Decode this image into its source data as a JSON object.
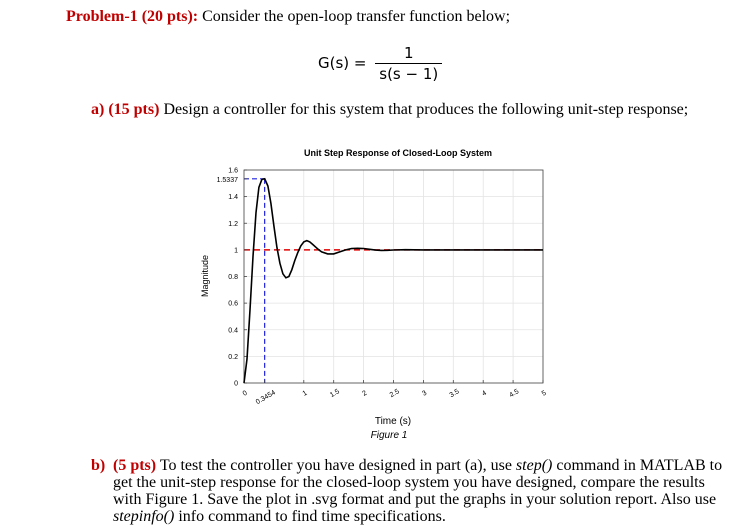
{
  "problem": {
    "label": "Problem-1 (20 pts):",
    "text": " Consider the open-loop transfer function below;",
    "tf_lhs": "G(s) =",
    "tf_num": "1",
    "tf_den": "s(s − 1)"
  },
  "part_a": {
    "label": "a)  (15 pts)",
    "text": " Design a controller for this system that produces the following unit-step response;"
  },
  "part_b": {
    "label": "b)",
    "pts": "(5 pts)",
    "t1": " To test the controller you have designed in part (a), use ",
    "cmd1": "step()",
    "t2": " command in MATLAB to get the unit-step response for the closed-loop system you have designed, compare the results with Figure 1. Save the plot in .svg format and put the graphs in your solution report. Also use ",
    "cmd2": "stepinfo()",
    "t3": " info command to find time specifications."
  },
  "figure_caption": "Figure 1",
  "chart_data": {
    "type": "line",
    "title": "Unit Step Response of Closed-Loop System",
    "xlabel": "Time (s)",
    "ylabel": "Magnitude",
    "xlim": [
      0,
      5
    ],
    "ylim": [
      0,
      1.6
    ],
    "x_ticks": [
      0,
      0.3454,
      1,
      1.5,
      2,
      2.5,
      3,
      3.5,
      4,
      4.5,
      5
    ],
    "x_tick_labels": [
      "0",
      "0.3454",
      "1",
      "1.5",
      "2",
      "2.5",
      "3",
      "3.5",
      "4",
      "4.5",
      "5"
    ],
    "y_ticks": [
      0,
      0.2,
      0.4,
      0.6,
      0.8,
      1,
      1.2,
      1.4,
      1.5337,
      1.6
    ],
    "y_tick_labels": [
      "0",
      "0.2",
      "0.4",
      "0.6",
      "0.8",
      "1",
      "1.2",
      "1.4",
      "1.5337",
      "1.6"
    ],
    "grid": true,
    "peak": {
      "time": 0.3454,
      "value": 1.5337
    },
    "reference_level": 1,
    "series": [
      {
        "color": "#000000",
        "x": [
          0,
          0.05,
          0.1,
          0.15,
          0.2,
          0.25,
          0.3,
          0.3454,
          0.4,
          0.45,
          0.5,
          0.55,
          0.6,
          0.65,
          0.7,
          0.75,
          0.8,
          0.85,
          0.9,
          0.95,
          1.0,
          1.05,
          1.1,
          1.15,
          1.2,
          1.25,
          1.3,
          1.4,
          1.5,
          1.6,
          1.7,
          1.8,
          1.9,
          2.0,
          2.1,
          2.2,
          2.3,
          2.4,
          2.5,
          2.7,
          3.0,
          3.5,
          4.0,
          4.5,
          5.0
        ],
        "y": [
          0,
          0.18,
          0.55,
          0.95,
          1.28,
          1.47,
          1.53,
          1.5337,
          1.48,
          1.35,
          1.18,
          1.02,
          0.9,
          0.82,
          0.79,
          0.8,
          0.85,
          0.92,
          0.98,
          1.03,
          1.06,
          1.07,
          1.06,
          1.04,
          1.02,
          1.0,
          0.985,
          0.97,
          0.97,
          0.985,
          1.0,
          1.01,
          1.012,
          1.01,
          1.004,
          0.998,
          0.996,
          0.997,
          0.999,
          1.001,
          1.0,
          1.0,
          1.0,
          1.0,
          1.0
        ]
      }
    ]
  }
}
